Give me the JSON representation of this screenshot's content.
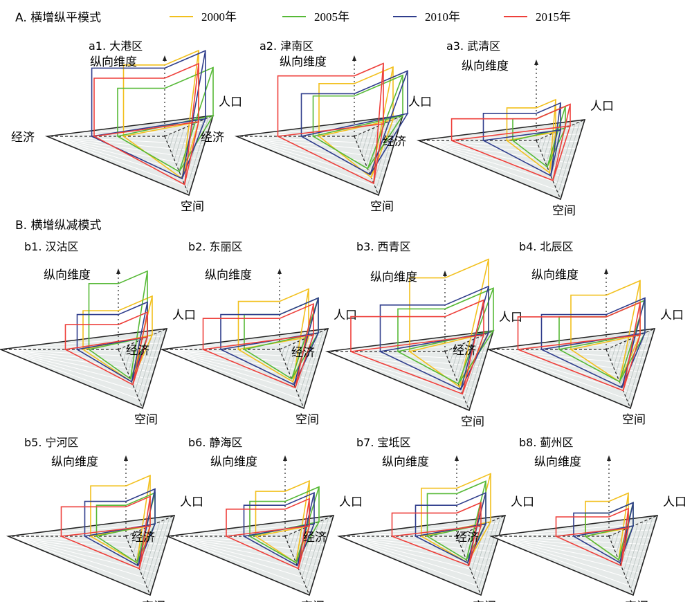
{
  "sections": {
    "A": "A. 横增纵平模式",
    "B": "B. 横增纵减模式"
  },
  "legend": [
    {
      "label": "2000年",
      "color": "#f2c01d"
    },
    {
      "label": "2005年",
      "color": "#56b936"
    },
    {
      "label": "2010年",
      "color": "#2f3d8c"
    },
    {
      "label": "2015年",
      "color": "#ee3f3a"
    }
  ],
  "axes": {
    "vertical": "纵向维度",
    "population": "人口",
    "economy": "经济",
    "space": "空间"
  },
  "chart_data": [
    {
      "type": "radar-3d",
      "title": "a1. 大港区",
      "series": [
        {
          "name": "2000年",
          "econ": 0.35,
          "pop": 0.35,
          "space": 0.72,
          "vert": 0.92
        },
        {
          "name": "2005年",
          "econ": 0.4,
          "pop": 0.5,
          "space": 0.6,
          "vert": 0.62
        },
        {
          "name": "2010年",
          "econ": 0.62,
          "pop": 0.42,
          "space": 0.72,
          "vert": 0.88
        },
        {
          "name": "2015年",
          "econ": 0.6,
          "pop": 0.35,
          "space": 0.82,
          "vert": 0.75
        }
      ]
    },
    {
      "type": "radar-3d",
      "title": "a2. 津南区",
      "series": [
        {
          "name": "2000年",
          "econ": 0.3,
          "pop": 0.4,
          "space": 0.7,
          "vert": 0.68
        },
        {
          "name": "2005年",
          "econ": 0.35,
          "pop": 0.5,
          "space": 0.55,
          "vert": 0.52
        },
        {
          "name": "2010年",
          "econ": 0.45,
          "pop": 0.55,
          "space": 0.65,
          "vert": 0.55
        },
        {
          "name": "2015年",
          "econ": 0.65,
          "pop": 0.3,
          "space": 0.8,
          "vert": 0.78
        }
      ]
    },
    {
      "type": "radar-3d",
      "title": "a3. 武清区",
      "series": [
        {
          "name": "2000年",
          "econ": 0.25,
          "pop": 0.2,
          "space": 0.55,
          "vert": 0.42
        },
        {
          "name": "2005年",
          "econ": 0.2,
          "pop": 0.3,
          "space": 0.45,
          "vert": 0.28
        },
        {
          "name": "2010年",
          "econ": 0.45,
          "pop": 0.25,
          "space": 0.6,
          "vert": 0.35
        },
        {
          "name": "2015年",
          "econ": 0.72,
          "pop": 0.35,
          "space": 0.68,
          "vert": 0.28
        }
      ]
    },
    {
      "type": "radar-3d",
      "title": "b1. 汉沽区",
      "series": [
        {
          "name": "2000年",
          "econ": 0.3,
          "pop": 0.35,
          "space": 0.55,
          "vert": 0.5
        },
        {
          "name": "2005年",
          "econ": 0.25,
          "pop": 0.3,
          "space": 0.5,
          "vert": 0.85
        },
        {
          "name": "2010年",
          "econ": 0.35,
          "pop": 0.3,
          "space": 0.55,
          "vert": 0.45
        },
        {
          "name": "2015年",
          "econ": 0.45,
          "pop": 0.3,
          "space": 0.6,
          "vert": 0.32
        }
      ]
    },
    {
      "type": "radar-3d",
      "title": "b2. 东丽区",
      "series": [
        {
          "name": "2000年",
          "econ": 0.35,
          "pop": 0.3,
          "space": 0.55,
          "vert": 0.62
        },
        {
          "name": "2005年",
          "econ": 0.3,
          "pop": 0.4,
          "space": 0.5,
          "vert": 0.45
        },
        {
          "name": "2010年",
          "econ": 0.5,
          "pop": 0.4,
          "space": 0.6,
          "vert": 0.45
        },
        {
          "name": "2015年",
          "econ": 0.65,
          "pop": 0.35,
          "space": 0.65,
          "vert": 0.4
        }
      ]
    },
    {
      "type": "radar-3d",
      "title": "b3. 西青区",
      "series": [
        {
          "name": "2000年",
          "econ": 0.3,
          "pop": 0.45,
          "space": 0.6,
          "vert": 0.95
        },
        {
          "name": "2005年",
          "econ": 0.4,
          "pop": 0.5,
          "space": 0.55,
          "vert": 0.55
        },
        {
          "name": "2010年",
          "econ": 0.55,
          "pop": 0.45,
          "space": 0.65,
          "vert": 0.6
        },
        {
          "name": "2015年",
          "econ": 0.8,
          "pop": 0.4,
          "space": 0.72,
          "vert": 0.45
        }
      ]
    },
    {
      "type": "radar-3d",
      "title": "b4. 北辰区",
      "series": [
        {
          "name": "2000年",
          "econ": 0.3,
          "pop": 0.35,
          "space": 0.55,
          "vert": 0.7
        },
        {
          "name": "2005年",
          "econ": 0.4,
          "pop": 0.4,
          "space": 0.55,
          "vert": 0.42
        },
        {
          "name": "2010年",
          "econ": 0.55,
          "pop": 0.4,
          "space": 0.65,
          "vert": 0.45
        },
        {
          "name": "2015年",
          "econ": 0.75,
          "pop": 0.35,
          "space": 0.7,
          "vert": 0.42
        }
      ]
    },
    {
      "type": "radar-3d",
      "title": "b5. 宁河区",
      "series": [
        {
          "name": "2000年",
          "econ": 0.3,
          "pop": 0.25,
          "space": 0.45,
          "vert": 0.65
        },
        {
          "name": "2005年",
          "econ": 0.25,
          "pop": 0.3,
          "space": 0.45,
          "vert": 0.4
        },
        {
          "name": "2010年",
          "econ": 0.35,
          "pop": 0.3,
          "space": 0.5,
          "vert": 0.45
        },
        {
          "name": "2015年",
          "econ": 0.55,
          "pop": 0.25,
          "space": 0.55,
          "vert": 0.38
        }
      ]
    },
    {
      "type": "radar-3d",
      "title": "b6. 静海区",
      "series": [
        {
          "name": "2000年",
          "econ": 0.25,
          "pop": 0.25,
          "space": 0.45,
          "vert": 0.58
        },
        {
          "name": "2005年",
          "econ": 0.3,
          "pop": 0.35,
          "space": 0.45,
          "vert": 0.45
        },
        {
          "name": "2010年",
          "econ": 0.35,
          "pop": 0.3,
          "space": 0.5,
          "vert": 0.4
        },
        {
          "name": "2015年",
          "econ": 0.5,
          "pop": 0.25,
          "space": 0.55,
          "vert": 0.35
        }
      ]
    },
    {
      "type": "radar-3d",
      "title": "b7. 宝坻区",
      "series": [
        {
          "name": "2000年",
          "econ": 0.3,
          "pop": 0.35,
          "space": 0.45,
          "vert": 0.62
        },
        {
          "name": "2005年",
          "econ": 0.25,
          "pop": 0.3,
          "space": 0.4,
          "vert": 0.55
        },
        {
          "name": "2010年",
          "econ": 0.35,
          "pop": 0.3,
          "space": 0.45,
          "vert": 0.4
        },
        {
          "name": "2015年",
          "econ": 0.55,
          "pop": 0.25,
          "space": 0.5,
          "vert": 0.3
        }
      ]
    },
    {
      "type": "radar-3d",
      "title": "b8. 蓟州区",
      "series": [
        {
          "name": "2000年",
          "econ": 0.2,
          "pop": 0.2,
          "space": 0.4,
          "vert": 0.45
        },
        {
          "name": "2005年",
          "econ": 0.2,
          "pop": 0.25,
          "space": 0.4,
          "vert": 0.3
        },
        {
          "name": "2010年",
          "econ": 0.3,
          "pop": 0.25,
          "space": 0.45,
          "vert": 0.3
        },
        {
          "name": "2015年",
          "econ": 0.45,
          "pop": 0.2,
          "space": 0.5,
          "vert": 0.25
        }
      ]
    }
  ]
}
